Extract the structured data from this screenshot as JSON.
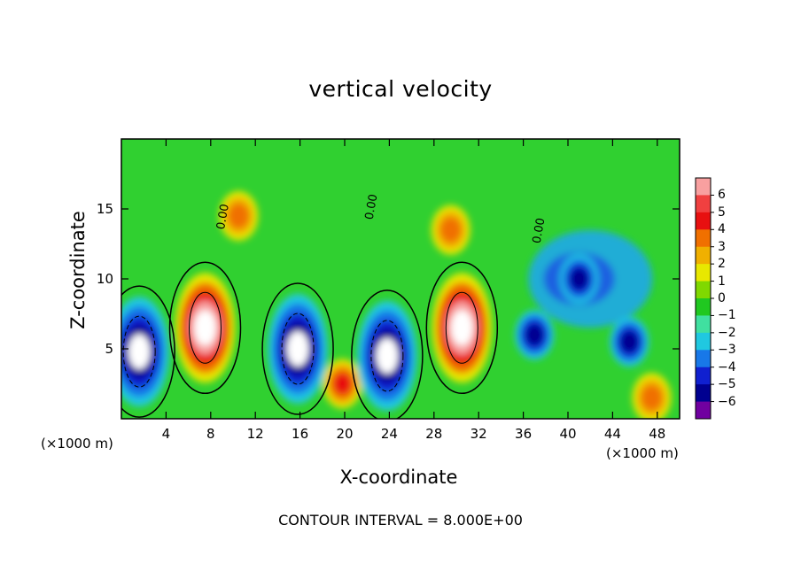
{
  "chart_data": {
    "type": "heatmap",
    "title": "vertical velocity",
    "xlabel": "X-coordinate",
    "ylabel": "Z-coordinate",
    "x_unit_left": "(×1000 m)",
    "x_unit_right": "(×1000 m)",
    "xlim": [
      0,
      50
    ],
    "ylim": [
      0,
      20
    ],
    "x_ticks": [
      "4",
      "8",
      "12",
      "16",
      "20",
      "24",
      "28",
      "32",
      "36",
      "40",
      "44",
      "48"
    ],
    "x_tick_values": [
      4,
      8,
      12,
      16,
      20,
      24,
      28,
      32,
      36,
      40,
      44,
      48
    ],
    "y_ticks": [
      "5",
      "10",
      "15"
    ],
    "y_tick_values": [
      5,
      10,
      15
    ],
    "contour_labels": [
      "0.00",
      "0.00",
      "0.00"
    ],
    "colorbar": {
      "labels": [
        "6",
        "5",
        "4",
        "3",
        "2",
        "1",
        "0",
        "−1",
        "−2",
        "−3",
        "−4",
        "−5",
        "−6"
      ],
      "colors": [
        "#f8a0a0",
        "#f04040",
        "#e81010",
        "#f07000",
        "#f0b000",
        "#e8e800",
        "#80d800",
        "#20c820",
        "#40e0a0",
        "#20c8e0",
        "#1878e8",
        "#1020d0",
        "#000090",
        "#7000a0"
      ]
    },
    "features": [
      {
        "x": 1.6,
        "z": 4.8,
        "w": -8
      },
      {
        "x": 7.5,
        "z": 6.5,
        "w": 9
      },
      {
        "x": 10.5,
        "z": 14.5,
        "w": 2
      },
      {
        "x": 15.8,
        "z": 5.0,
        "w": -8
      },
      {
        "x": 19.8,
        "z": 2.5,
        "w": 6
      },
      {
        "x": 23.8,
        "z": 4.5,
        "w": -8
      },
      {
        "x": 30.5,
        "z": 6.5,
        "w": 9
      },
      {
        "x": 29.5,
        "z": 13.5,
        "w": 3
      },
      {
        "x": 37.0,
        "z": 6.0,
        "w": -5
      },
      {
        "x": 41.0,
        "z": 10.0,
        "w": -4
      },
      {
        "x": 45.5,
        "z": 5.5,
        "w": -5
      },
      {
        "x": 47.5,
        "z": 1.5,
        "w": 2
      }
    ],
    "grid": false,
    "legend": "right"
  },
  "note": "CONTOUR INTERVAL = 8.000E+00"
}
